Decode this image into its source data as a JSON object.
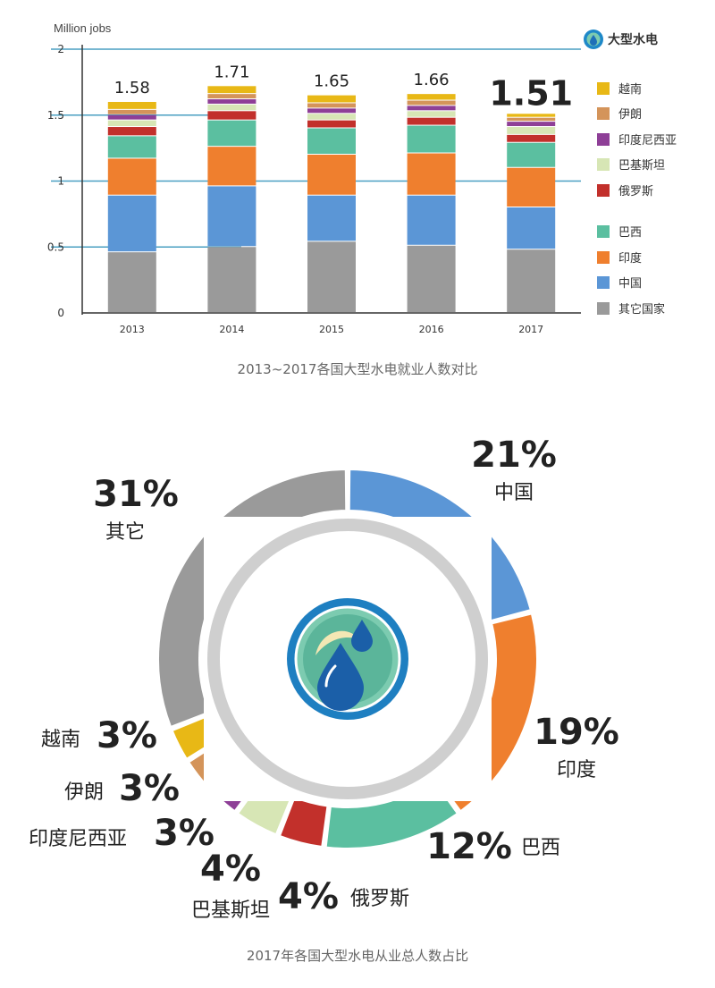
{
  "colors": {
    "vietnam": "#e8b816",
    "iran": "#d4945a",
    "indonesia": "#8e3f97",
    "pakistan": "#d7e6b5",
    "russia": "#c2302b",
    "brazil": "#5bbfa0",
    "india": "#ef7f2e",
    "china": "#5b96d6",
    "others": "#9a9a9a"
  },
  "bar_chart": {
    "brand": {
      "name": "大型水电",
      "icon": "water-drop-icon"
    },
    "caption": "2013~2017各国大型水电就业人数对比"
  },
  "donut_chart": {
    "caption": "2017年各国大型水电从业总人数占比",
    "center_icon": "water-drop-icon"
  },
  "chart_data": [
    {
      "type": "bar",
      "stacked": true,
      "ylabel": "Million jobs",
      "yticks": [
        "0",
        "0.5",
        "1",
        "1.5",
        "2"
      ],
      "ylim": [
        0,
        2
      ],
      "categories": [
        "2013",
        "2014",
        "2015",
        "2016",
        "2017"
      ],
      "totals_labels": [
        "1.58",
        "1.71",
        "1.65",
        "1.66",
        "1.51"
      ],
      "grid": true,
      "legend_position": "right",
      "series": [
        {
          "name": "其它国家",
          "key": "others",
          "values": [
            0.46,
            0.5,
            0.54,
            0.51,
            0.48
          ]
        },
        {
          "name": "中国",
          "key": "china",
          "values": [
            0.43,
            0.46,
            0.35,
            0.38,
            0.32
          ]
        },
        {
          "name": "印度",
          "key": "india",
          "values": [
            0.28,
            0.3,
            0.31,
            0.32,
            0.3
          ]
        },
        {
          "name": "巴西",
          "key": "brazil",
          "values": [
            0.17,
            0.2,
            0.2,
            0.21,
            0.19
          ]
        },
        {
          "name": "俄罗斯",
          "key": "russia",
          "values": [
            0.07,
            0.07,
            0.06,
            0.06,
            0.06
          ]
        },
        {
          "name": "巴基斯坦",
          "key": "pakistan",
          "values": [
            0.05,
            0.05,
            0.05,
            0.05,
            0.06
          ]
        },
        {
          "name": "印度尼西亚",
          "key": "indonesia",
          "values": [
            0.04,
            0.04,
            0.04,
            0.04,
            0.04
          ]
        },
        {
          "name": "伊朗",
          "key": "iran",
          "values": [
            0.04,
            0.04,
            0.04,
            0.04,
            0.03
          ]
        },
        {
          "name": "越南",
          "key": "vietnam",
          "values": [
            0.06,
            0.06,
            0.06,
            0.05,
            0.03
          ]
        }
      ]
    },
    {
      "type": "pie",
      "donut": true,
      "slices": [
        {
          "name": "中国",
          "key": "china",
          "value": 21,
          "label": "21%"
        },
        {
          "name": "印度",
          "key": "india",
          "value": 19,
          "label": "19%"
        },
        {
          "name": "巴西",
          "key": "brazil",
          "value": 12,
          "label": "12%"
        },
        {
          "name": "俄罗斯",
          "key": "russia",
          "value": 4,
          "label": "4%"
        },
        {
          "name": "巴基斯坦",
          "key": "pakistan",
          "value": 4,
          "label": "4%"
        },
        {
          "name": "印度尼西亚",
          "key": "indonesia",
          "value": 3,
          "label": "3%"
        },
        {
          "name": "伊朗",
          "key": "iran",
          "value": 3,
          "label": "3%"
        },
        {
          "name": "越南",
          "key": "vietnam",
          "value": 3,
          "label": "3%"
        },
        {
          "name": "其它",
          "key": "others",
          "value": 31,
          "label": "31%"
        }
      ]
    }
  ]
}
